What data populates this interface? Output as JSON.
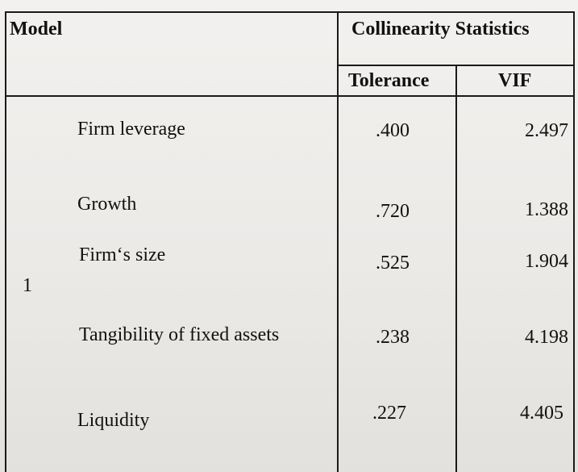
{
  "table": {
    "header": {
      "model": "Model",
      "group": "Collinearity Statistics",
      "tolerance": "Tolerance",
      "vif": "VIF"
    },
    "model_number": "1",
    "rows": [
      {
        "variable": "Firm leverage",
        "tolerance": ".400",
        "vif": "2.497"
      },
      {
        "variable": "Growth",
        "tolerance": ".720",
        "vif": "1.388"
      },
      {
        "variable": "Firm‘s size",
        "tolerance": ".525",
        "vif": "1.904"
      },
      {
        "variable": "Tangibility of fixed assets",
        "tolerance": ".238",
        "vif": "4.198"
      },
      {
        "variable": "Liquidity",
        "tolerance": ".227",
        "vif": "4.405"
      }
    ]
  }
}
